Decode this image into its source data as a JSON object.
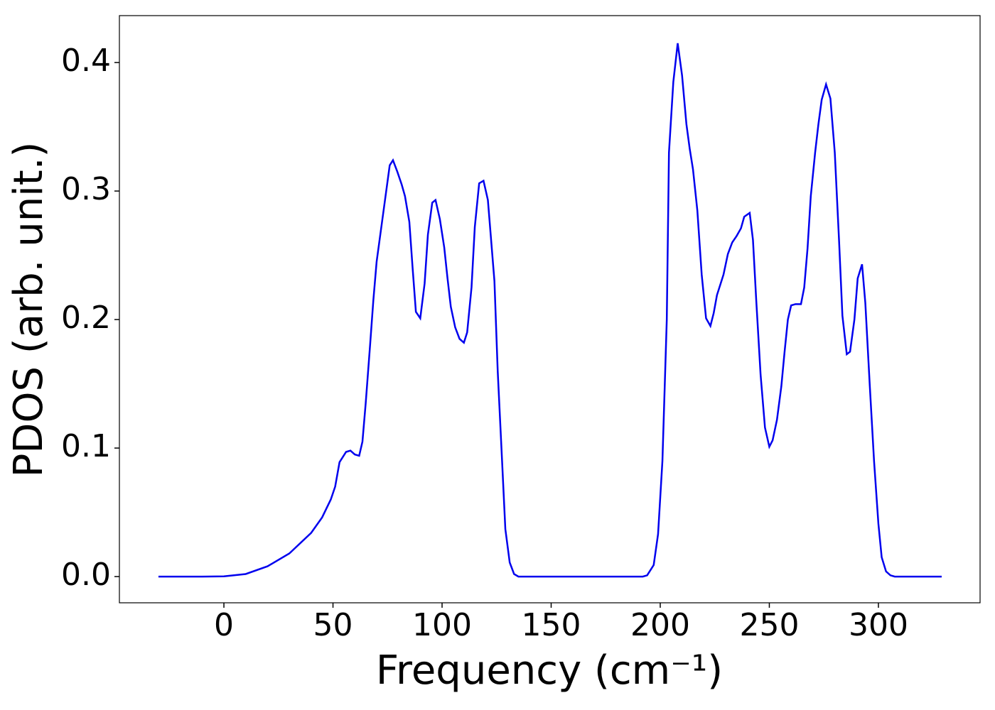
{
  "chart_data": {
    "type": "line",
    "x_label": "Frequency (cm⁻¹)",
    "y_label": "PDOS (arb. unit.)",
    "x": [
      -30,
      -20,
      -10,
      0,
      10,
      20,
      30,
      40,
      45,
      49,
      51,
      53,
      56,
      58,
      60,
      62,
      63.5,
      65,
      67,
      68.5,
      70,
      72,
      74,
      76,
      77.5,
      79.5,
      81.5,
      83,
      85,
      86.5,
      88,
      90,
      92,
      93.5,
      95.5,
      97,
      99,
      101,
      102.5,
      104,
      106,
      108,
      110,
      111.5,
      113.5,
      115,
      117,
      119,
      121,
      122,
      124,
      125.5,
      127.5,
      129,
      131,
      133,
      135,
      150,
      170,
      192,
      194,
      197,
      199,
      201,
      203,
      204,
      206,
      208,
      210,
      212,
      213.5,
      215,
      217,
      219,
      221,
      223,
      224.5,
      226,
      229,
      231,
      233,
      235,
      237,
      238.5,
      241,
      242.5,
      244,
      246,
      248,
      250,
      251.5,
      253.5,
      255.5,
      257,
      258.5,
      260,
      262,
      264.5,
      266,
      267.5,
      269,
      271,
      272.5,
      274,
      276,
      278,
      280,
      282,
      283.5,
      285.5,
      287,
      289,
      290.5,
      292.5,
      294,
      296,
      298,
      300,
      301.5,
      303.5,
      305.5,
      307.5,
      320,
      329
    ],
    "series": [
      {
        "color": "#0000ee",
        "values": [
          0,
          0,
          0,
          0.0002,
          0.002,
          0.008,
          0.018,
          0.034,
          0.046,
          0.06,
          0.07,
          0.089,
          0.097,
          0.098,
          0.095,
          0.094,
          0.105,
          0.135,
          0.18,
          0.215,
          0.245,
          0.27,
          0.295,
          0.32,
          0.324,
          0.315,
          0.305,
          0.296,
          0.276,
          0.24,
          0.206,
          0.201,
          0.228,
          0.266,
          0.291,
          0.293,
          0.278,
          0.256,
          0.232,
          0.21,
          0.194,
          0.185,
          0.182,
          0.19,
          0.225,
          0.272,
          0.306,
          0.308,
          0.293,
          0.272,
          0.23,
          0.16,
          0.09,
          0.037,
          0.011,
          0.002,
          0,
          0,
          0,
          0,
          0.001,
          0.009,
          0.033,
          0.09,
          0.2,
          0.33,
          0.385,
          0.415,
          0.39,
          0.352,
          0.333,
          0.317,
          0.285,
          0.235,
          0.201,
          0.195,
          0.205,
          0.219,
          0.235,
          0.251,
          0.26,
          0.265,
          0.271,
          0.28,
          0.283,
          0.262,
          0.215,
          0.157,
          0.116,
          0.101,
          0.106,
          0.122,
          0.148,
          0.175,
          0.2,
          0.211,
          0.212,
          0.212,
          0.225,
          0.255,
          0.296,
          0.33,
          0.352,
          0.371,
          0.383,
          0.372,
          0.33,
          0.26,
          0.203,
          0.173,
          0.175,
          0.2,
          0.232,
          0.243,
          0.213,
          0.15,
          0.09,
          0.041,
          0.015,
          0.004,
          0.001,
          0,
          0,
          0
        ]
      }
    ],
    "xlim": [
      -47.9,
      346.6
    ],
    "ylim": [
      -0.0204,
      0.4365
    ],
    "xticks": [
      0,
      50,
      100,
      150,
      200,
      250,
      300
    ],
    "yticks": [
      {
        "value": 0,
        "label": "0.0"
      },
      0.1,
      0.2,
      0.3,
      0.4
    ]
  }
}
